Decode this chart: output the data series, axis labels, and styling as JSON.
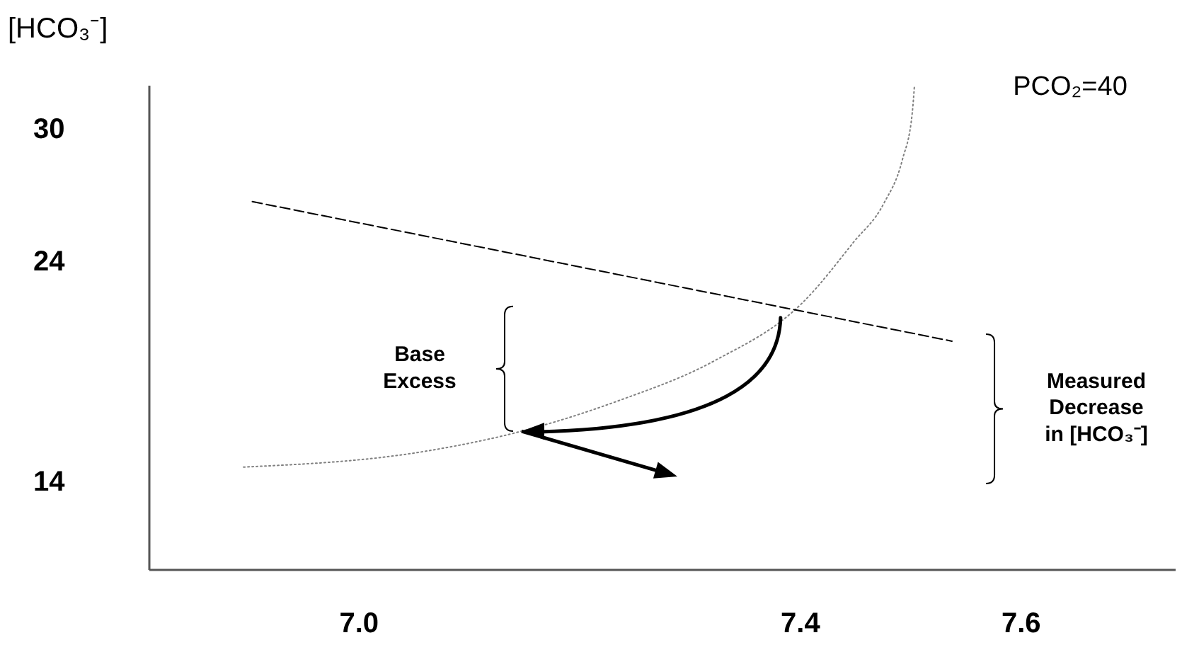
{
  "chart_data": {
    "type": "line",
    "ylabel": "[HCO₃⁻]",
    "xlim": [
      6.81,
      7.74
    ],
    "ylim": [
      10,
      32
    ],
    "xticks": [
      {
        "value": 7,
        "label": "7.0"
      },
      7.4,
      7.6
    ],
    "yticks": [
      14,
      24,
      30
    ],
    "grid": false,
    "series": [
      {
        "x": [
          6.896,
          7.061,
          7.148,
          7.235,
          7.322,
          7.404,
          7.449,
          7.476,
          7.493,
          7.502,
          7.504
        ],
        "values": [
          14.64,
          15.36,
          16.27,
          17.64,
          19.45,
          22.18,
          24.87,
          26.6,
          28.6,
          30.74,
          32
        ],
        "color": "#808080",
        "line_style": "dotted"
      },
      {
        "x": [
          6.904,
          7.538
        ],
        "values": [
          26.7,
          20.36
        ],
        "color": "#000000",
        "line_style": "dashed"
      }
    ],
    "annotations": [
      "PCO₂=40",
      "Base\nExcess",
      "Measured\nDecrease\nin [HCO₃⁻]"
    ]
  }
}
